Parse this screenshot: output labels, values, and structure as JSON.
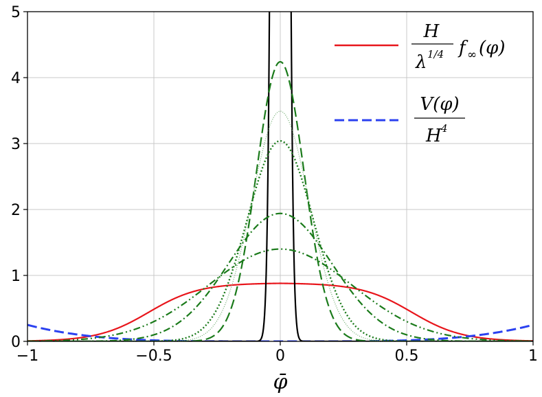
{
  "chart_data": {
    "type": "line",
    "title": "",
    "xlabel": "φ̄",
    "ylabel": "",
    "xlim": [
      -1,
      1
    ],
    "ylim": [
      0,
      5
    ],
    "grid": true,
    "legend_placement": "top-right",
    "x_ticks": [
      -1,
      -0.5,
      0,
      0.5,
      1
    ],
    "x_tick_labels": [
      "−1",
      "−0.5",
      "0",
      "0.5",
      "1"
    ],
    "y_ticks": [
      0,
      1,
      2,
      3,
      4,
      5
    ],
    "y_tick_labels": [
      "0",
      "1",
      "2",
      "3",
      "4",
      "5"
    ],
    "legend": [
      {
        "num": "H",
        "den": "λ",
        "den_sup": "1/4",
        "suffix": "f",
        "suffix_sub": "∞",
        "suffix_arg": "(φ)",
        "color": "#e8151b",
        "style": "solid"
      },
      {
        "num": "V(φ)",
        "den": "H",
        "den_sup": "4",
        "color": "#2b41f0",
        "style": "dashed"
      }
    ],
    "series": [
      {
        "style": "solid",
        "color": "#e8151b",
        "kind": "plateau",
        "peak": 0.885,
        "half_width": 0.52,
        "edge": 0.1
      },
      {
        "style": "dashed",
        "color": "#2b41f0",
        "kind": "quartic",
        "coeff": 0.25
      },
      {
        "style": "solid",
        "color": "#000000",
        "kind": "gaussian",
        "peak": 50,
        "sigma": 0.02
      },
      {
        "style": "dashed",
        "color": "#1a7a1a",
        "kind": "gaussian",
        "peak": 4.24,
        "sigma": 0.094
      },
      {
        "style": "dotted-fine",
        "color": "#6aa86a",
        "kind": "gaussian",
        "peak": 3.49,
        "sigma": 0.114
      },
      {
        "style": "dotted",
        "color": "#1a7a1a",
        "kind": "gaussian",
        "peak": 3.04,
        "sigma": 0.131
      },
      {
        "style": "dashdot",
        "color": "#1a7a1a",
        "kind": "gaussian",
        "peak": 1.94,
        "sigma": 0.205
      },
      {
        "style": "dashdotdot",
        "color": "#1a7a1a",
        "kind": "gaussian",
        "peak": 1.4,
        "sigma": 0.285
      }
    ]
  }
}
